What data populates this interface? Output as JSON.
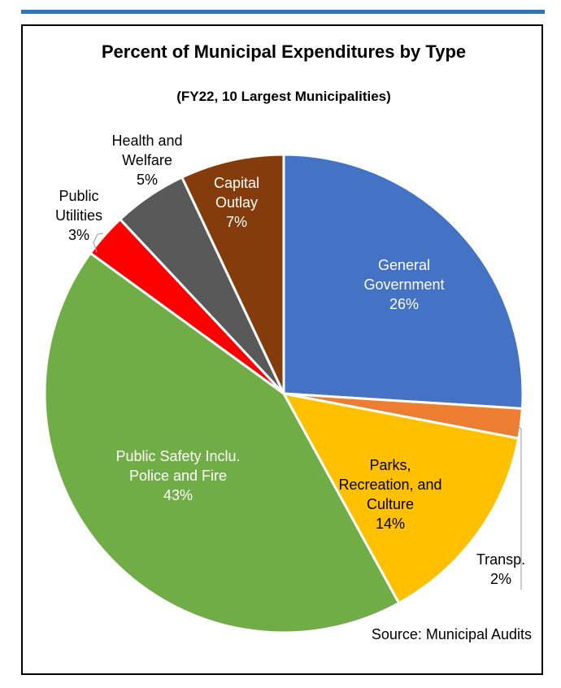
{
  "chart_data": {
    "type": "pie",
    "title": "Percent of Municipal Expenditures by Type",
    "subtitle": "(FY22, 10 Largest Municipalities)",
    "source": "Source: Municipal Audits",
    "slices": [
      {
        "key": "general-government",
        "label_lines": [
          "General",
          "Government",
          "26%"
        ],
        "value": 26,
        "color": "#4472c4",
        "text_color": "#ffffff",
        "label_inside": true
      },
      {
        "key": "transp",
        "label_lines": [
          "Transp.",
          "2%"
        ],
        "value": 2,
        "color": "#ed7d31",
        "text_color": "#000000",
        "label_inside": false
      },
      {
        "key": "parks-recreation-culture",
        "label_lines": [
          "Parks,",
          "Recreation, and",
          "Culture",
          "14%"
        ],
        "value": 14,
        "color": "#ffc000",
        "text_color": "#000000",
        "label_inside": true
      },
      {
        "key": "public-safety",
        "label_lines": [
          "Public Safety Inclu.",
          "Police and Fire",
          "43%"
        ],
        "value": 43,
        "color": "#70ad47",
        "text_color": "#ffffff",
        "label_inside": true
      },
      {
        "key": "public-utilities",
        "label_lines": [
          "Public",
          "Utilities",
          "3%"
        ],
        "value": 3,
        "color": "#ff0000",
        "text_color": "#000000",
        "label_inside": false
      },
      {
        "key": "health-welfare",
        "label_lines": [
          "Health and",
          "Welfare",
          "5%"
        ],
        "value": 5,
        "color": "#595959",
        "text_color": "#000000",
        "label_inside": false
      },
      {
        "key": "capital-outlay",
        "label_lines": [
          "Capital",
          "Outlay",
          "7%"
        ],
        "value": 7,
        "color": "#843c0c",
        "text_color": "#ffffff",
        "label_inside": true
      }
    ]
  }
}
